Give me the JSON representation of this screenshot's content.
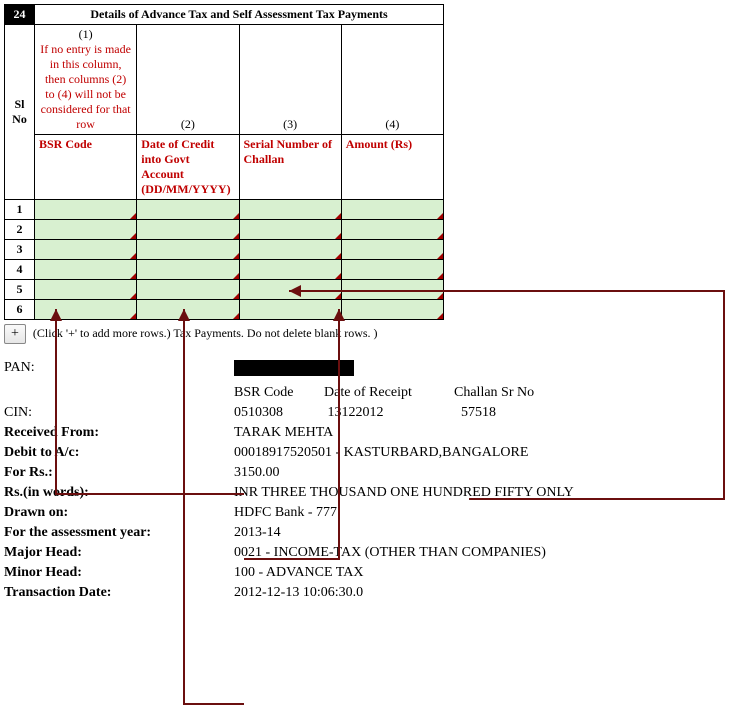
{
  "section_number": "24",
  "section_title": "Details of Advance Tax and Self Assessment Tax Payments",
  "col_note": "If no entry is made in this column, then columns (2) to (4) will not be considered for that row",
  "col_nums": {
    "c1": "(1)",
    "c2": "(2)",
    "c3": "(3)",
    "c4": "(4)"
  },
  "col_headers": {
    "slno": "Sl No",
    "bsr": "BSR Code",
    "date": "Date of Credit into Govt Account (DD/MM/YYYY)",
    "serial": "Serial Number of Challan",
    "amount": "Amount (Rs)"
  },
  "row_count": 6,
  "add_btn_label": "+",
  "add_note": "(Click '+' to add more rows.) Tax Payments. Do not delete blank rows. )",
  "cin_header": {
    "bsr": "BSR Code",
    "date": "Date of Receipt",
    "serial": "Challan Sr No"
  },
  "details": {
    "pan_label": "PAN:",
    "cin_label": "CIN:",
    "cin_bsr": "0510308",
    "cin_date": "13122012",
    "cin_serial": "57518",
    "received_label": "Received From:",
    "received_value": "TARAK MEHTA",
    "debit_label": "Debit to A/c:",
    "debit_value": "00018917520501 - KASTURBARD,BANGALORE",
    "rs_label": "For Rs.:",
    "rs_value": "3150.00",
    "rs_words_label": "Rs.(in words):",
    "rs_words_value": "INR  THREE THOUSAND ONE HUNDRED FIFTY ONLY",
    "drawn_label": "Drawn on:",
    "drawn_value": "HDFC Bank - 777",
    "ay_label": "For the assessment year:",
    "ay_value": "2013-14",
    "major_label": "Major Head:",
    "major_value": "0021 - INCOME-TAX (OTHER THAN COMPANIES)",
    "minor_label": "Minor Head:",
    "minor_value": "100 - ADVANCE TAX",
    "txn_label": "Transaction Date:",
    "txn_value": "2012-12-13 10:06:30.0"
  },
  "table_widths": {
    "slno": 30,
    "bsr": 100,
    "date": 120,
    "serial": 90,
    "amount": 100
  },
  "arrow_color": "#6b0f0f"
}
